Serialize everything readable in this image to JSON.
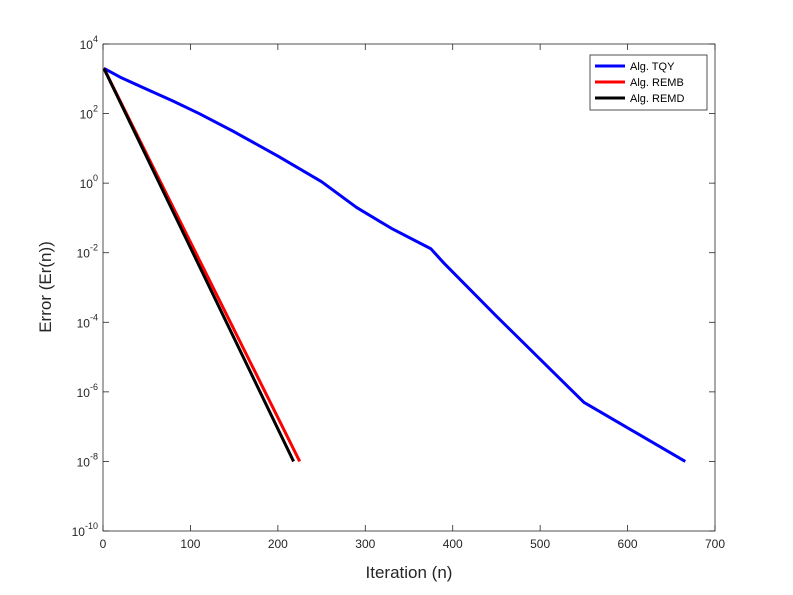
{
  "chart_data": {
    "type": "line",
    "title": "",
    "xlabel": "Iteration (n)",
    "ylabel": "Error (Er(n))",
    "xlim": [
      0,
      700
    ],
    "ylim": [
      1e-10,
      10000
    ],
    "yscale": "log",
    "grid": false,
    "legend_position": "top-right",
    "x_ticks": [
      {
        "value": 0,
        "label": "0"
      },
      {
        "value": 100,
        "label": "100"
      },
      {
        "value": 200,
        "label": "200"
      },
      {
        "value": 300,
        "label": "300"
      },
      {
        "value": 400,
        "label": "400"
      },
      {
        "value": 500,
        "label": "500"
      },
      {
        "value": 600,
        "label": "600"
      },
      {
        "value": 700,
        "label": "700"
      }
    ],
    "y_ticks": [
      {
        "value": 10000,
        "base": "10",
        "exp": "4"
      },
      {
        "value": 100,
        "base": "10",
        "exp": "2"
      },
      {
        "value": 1,
        "base": "10",
        "exp": "0"
      },
      {
        "value": 0.01,
        "base": "10",
        "exp": "-2"
      },
      {
        "value": 0.0001,
        "base": "10",
        "exp": "-4"
      },
      {
        "value": 1e-06,
        "base": "10",
        "exp": "-6"
      },
      {
        "value": 1e-08,
        "base": "10",
        "exp": "-8"
      },
      {
        "value": 1e-10,
        "base": "10",
        "exp": "-10"
      }
    ],
    "series": [
      {
        "name": "Alg. TQY",
        "color": "#0000ff",
        "x": [
          1,
          20,
          50,
          80,
          110,
          150,
          200,
          250,
          290,
          330,
          375,
          390,
          450,
          550,
          666
        ],
        "y": [
          2000,
          1100,
          500,
          230,
          100,
          30,
          6,
          1.1,
          0.2,
          0.05,
          0.013,
          0.005,
          0.00015,
          5e-07,
          1e-08
        ]
      },
      {
        "name": "Alg. REMB",
        "color": "#ff0000",
        "x": [
          1,
          225
        ],
        "y": [
          2000,
          1e-08
        ]
      },
      {
        "name": "Alg. REMD",
        "color": "#000000",
        "x": [
          1,
          218
        ],
        "y": [
          2000,
          1e-08
        ]
      }
    ]
  }
}
